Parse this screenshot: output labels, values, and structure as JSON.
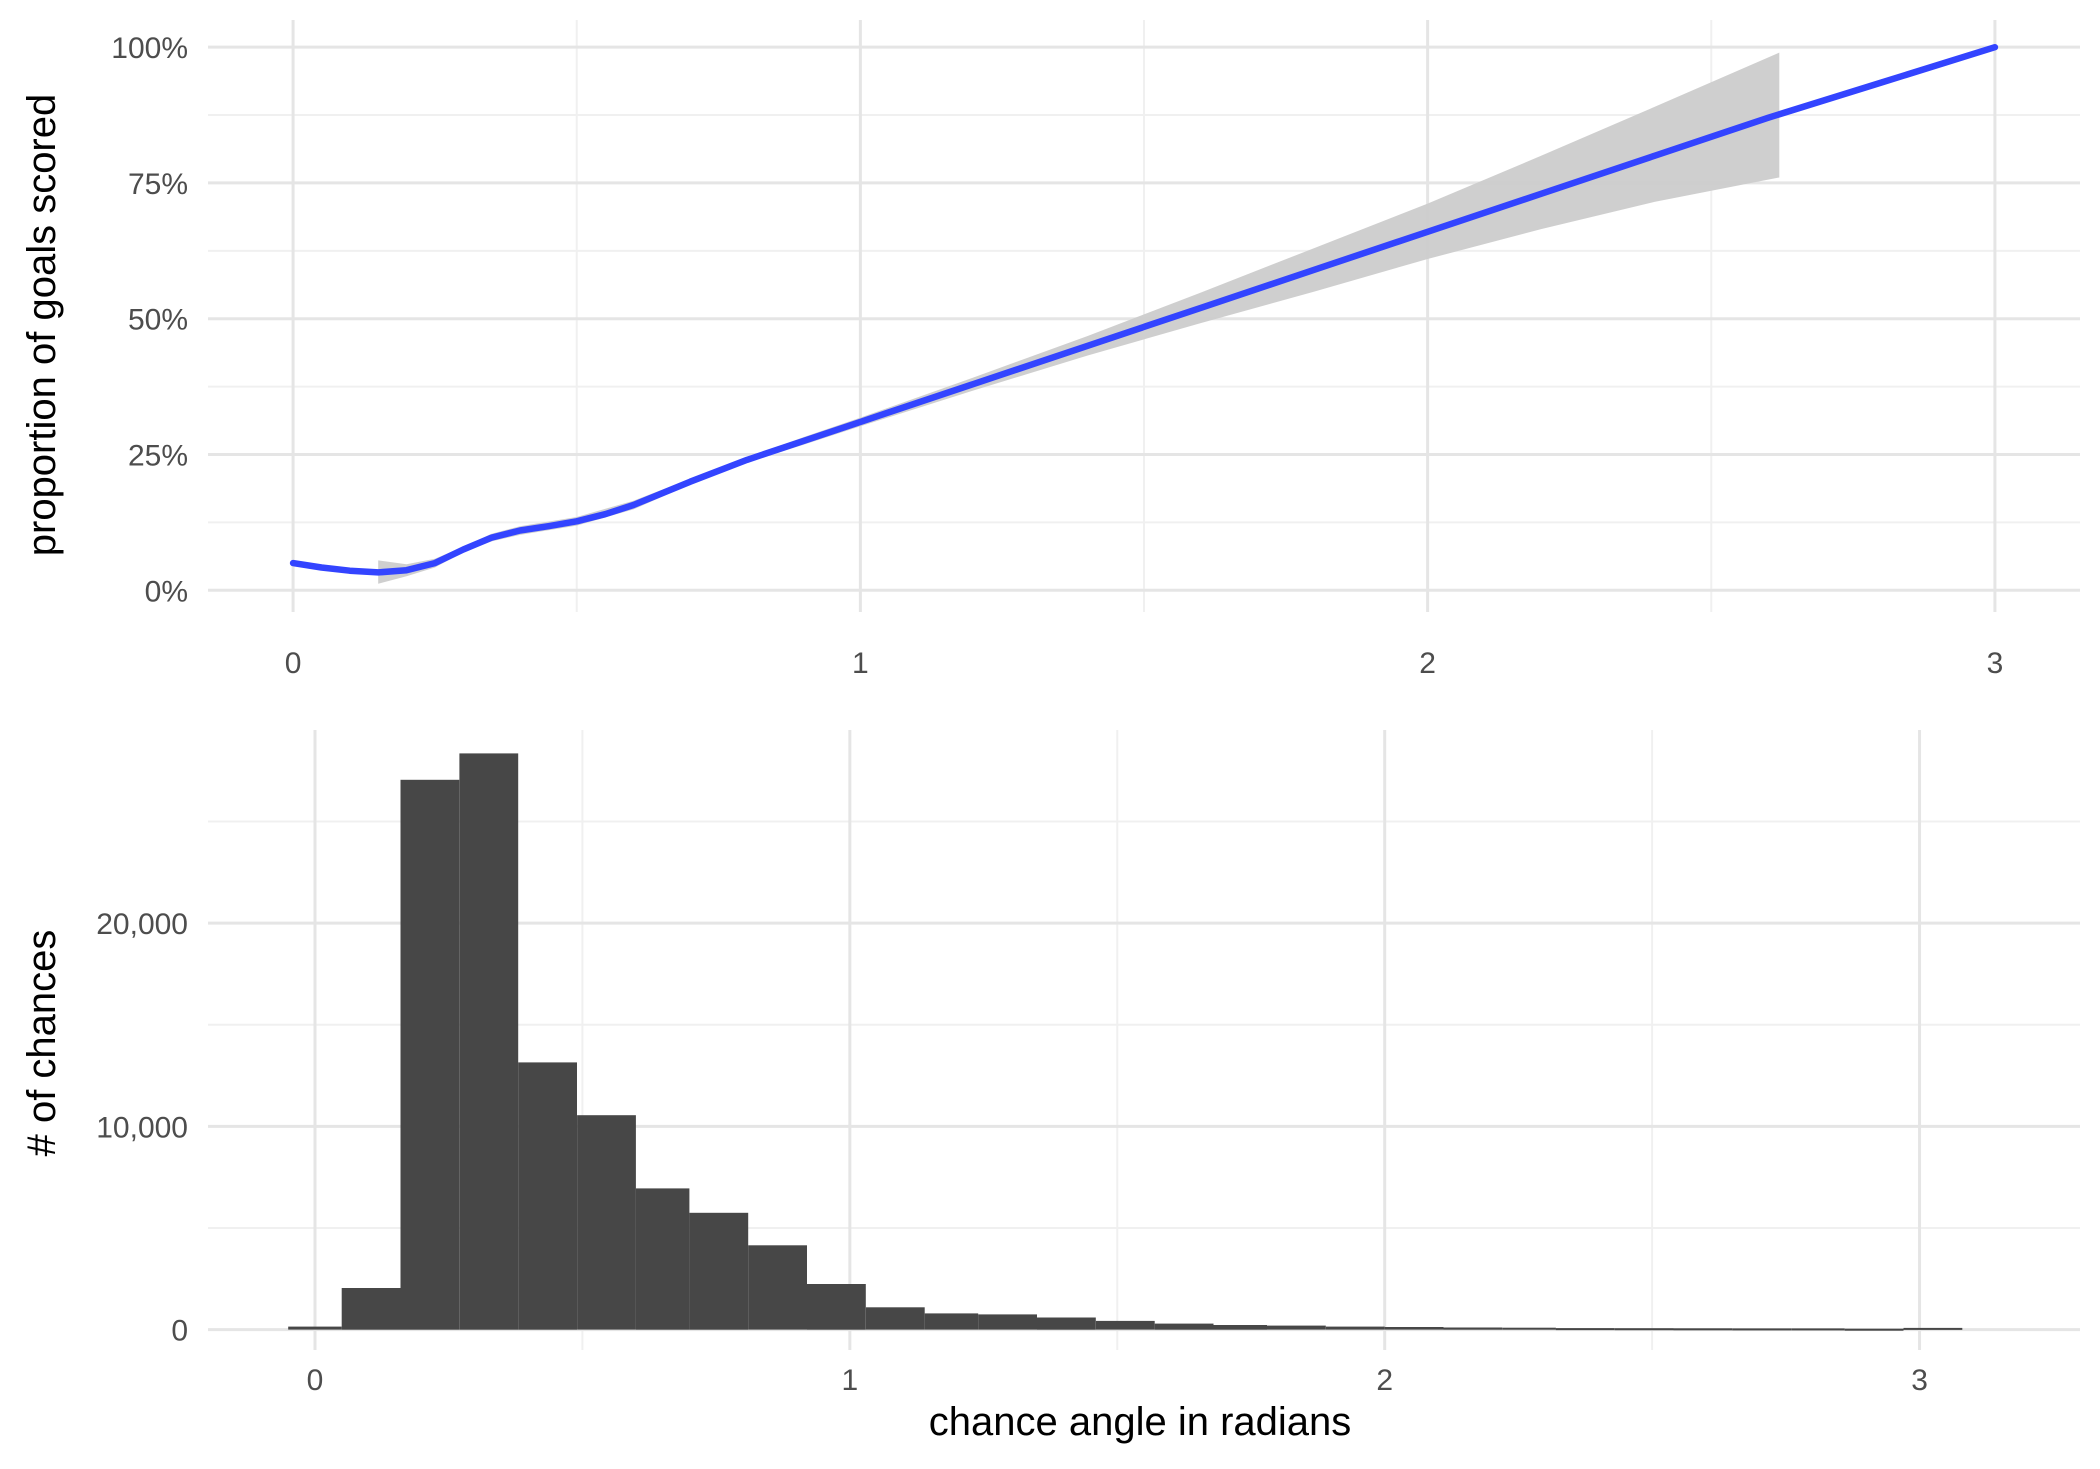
{
  "chart_data": [
    {
      "type": "line",
      "title": "",
      "xlabel": "",
      "ylabel": "proportion of goals scored",
      "xlim": [
        -0.15,
        3.15
      ],
      "ylim": [
        -0.04,
        1.05
      ],
      "x_ticks": [
        0,
        1,
        2,
        3
      ],
      "x_tick_labels": [
        "0",
        "1",
        "2",
        "3"
      ],
      "y_ticks": [
        0,
        0.25,
        0.5,
        0.75,
        1.0
      ],
      "y_tick_labels": [
        "0%",
        "25%",
        "50%",
        "75%",
        "100%"
      ],
      "grid": true,
      "colors": {
        "line": "#3344ff",
        "ribbon": "#cccccc"
      },
      "series": [
        {
          "type": "smooth-line",
          "x": [
            0,
            0.05,
            0.1,
            0.15,
            0.2,
            0.25,
            0.3,
            0.35,
            0.4,
            0.45,
            0.5,
            0.55,
            0.6,
            0.7,
            0.8,
            0.9,
            1.0,
            1.2,
            1.4,
            1.6,
            1.8,
            2.0,
            2.2,
            2.4,
            2.6,
            2.8,
            3.0
          ],
          "y": [
            0.05,
            0.042,
            0.036,
            0.033,
            0.037,
            0.05,
            0.075,
            0.097,
            0.11,
            0.118,
            0.127,
            0.14,
            0.157,
            0.2,
            0.24,
            0.275,
            0.31,
            0.38,
            0.45,
            0.52,
            0.59,
            0.66,
            0.73,
            0.8,
            0.87,
            0.935,
            1.0
          ]
        }
      ],
      "ribbon": {
        "x": [
          0.15,
          0.2,
          0.25,
          0.3,
          0.35,
          0.4,
          0.5,
          0.6,
          0.7,
          0.8,
          0.9,
          1.0,
          1.2,
          1.4,
          1.6,
          1.8,
          2.0,
          2.2,
          2.4,
          2.62
        ],
        "upper": [
          0.055,
          0.048,
          0.058,
          0.08,
          0.104,
          0.118,
          0.135,
          0.165,
          0.205,
          0.245,
          0.282,
          0.318,
          0.392,
          0.468,
          0.548,
          0.63,
          0.712,
          0.8,
          0.89,
          0.99
        ],
        "lower": [
          0.012,
          0.026,
          0.042,
          0.07,
          0.09,
          0.102,
          0.119,
          0.149,
          0.195,
          0.235,
          0.268,
          0.302,
          0.368,
          0.432,
          0.492,
          0.55,
          0.61,
          0.665,
          0.715,
          0.76
        ]
      }
    },
    {
      "type": "bar",
      "title": "",
      "xlabel": "chance angle in radians",
      "ylabel": "# of chances",
      "xlim": [
        -0.2,
        3.3
      ],
      "ylim": [
        -1000,
        29500
      ],
      "x_ticks": [
        0,
        1,
        2,
        3
      ],
      "x_tick_labels": [
        "0",
        "1",
        "2",
        "3"
      ],
      "y_ticks": [
        0,
        10000,
        20000
      ],
      "y_tick_labels": [
        "0",
        "10,000",
        "20,000"
      ],
      "grid": true,
      "colors": {
        "bar": "#474747"
      },
      "bins": [
        {
          "x0": -0.05,
          "x1": 0.05,
          "count": 100
        },
        {
          "x0": 0.05,
          "x1": 0.16,
          "count": 2000
        },
        {
          "x0": 0.16,
          "x1": 0.27,
          "count": 27000
        },
        {
          "x0": 0.27,
          "x1": 0.38,
          "count": 28300
        },
        {
          "x0": 0.38,
          "x1": 0.49,
          "count": 13100
        },
        {
          "x0": 0.49,
          "x1": 0.6,
          "count": 10500
        },
        {
          "x0": 0.6,
          "x1": 0.7,
          "count": 6900
        },
        {
          "x0": 0.7,
          "x1": 0.81,
          "count": 5700
        },
        {
          "x0": 0.81,
          "x1": 0.92,
          "count": 4100
        },
        {
          "x0": 0.92,
          "x1": 1.03,
          "count": 2200
        },
        {
          "x0": 1.03,
          "x1": 1.14,
          "count": 1050
        },
        {
          "x0": 1.14,
          "x1": 1.24,
          "count": 750
        },
        {
          "x0": 1.24,
          "x1": 1.35,
          "count": 700
        },
        {
          "x0": 1.35,
          "x1": 1.46,
          "count": 550
        },
        {
          "x0": 1.46,
          "x1": 1.57,
          "count": 380
        },
        {
          "x0": 1.57,
          "x1": 1.68,
          "count": 250
        },
        {
          "x0": 1.68,
          "x1": 1.78,
          "count": 180
        },
        {
          "x0": 1.78,
          "x1": 1.89,
          "count": 150
        },
        {
          "x0": 1.89,
          "x1": 2.0,
          "count": 100
        },
        {
          "x0": 2.0,
          "x1": 2.11,
          "count": 80
        },
        {
          "x0": 2.11,
          "x1": 2.22,
          "count": 60
        },
        {
          "x0": 2.22,
          "x1": 2.32,
          "count": 50
        },
        {
          "x0": 2.32,
          "x1": 2.43,
          "count": 30
        },
        {
          "x0": 2.43,
          "x1": 2.54,
          "count": 25
        },
        {
          "x0": 2.54,
          "x1": 2.65,
          "count": 20
        },
        {
          "x0": 2.65,
          "x1": 2.76,
          "count": 15
        },
        {
          "x0": 2.76,
          "x1": 2.86,
          "count": 12
        },
        {
          "x0": 2.86,
          "x1": 2.97,
          "count": 0
        },
        {
          "x0": 2.97,
          "x1": 3.08,
          "count": 40
        }
      ]
    }
  ]
}
